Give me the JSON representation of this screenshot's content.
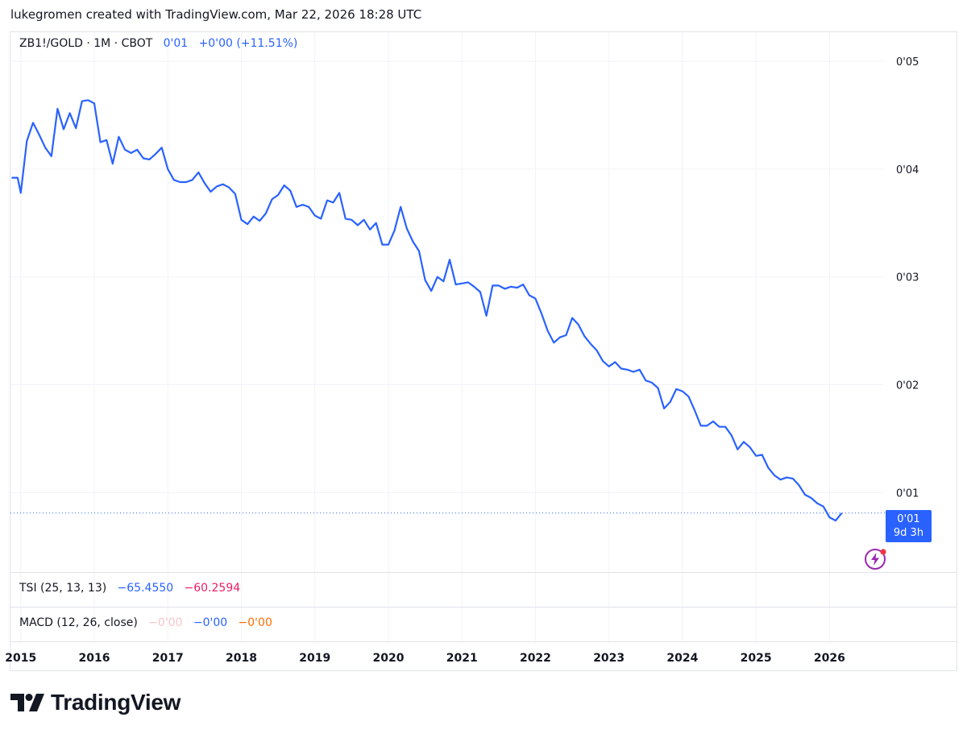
{
  "header": {
    "text": "lukegromen created with TradingView.com, Mar 22, 2026 18:28 UTC"
  },
  "legend": {
    "symbol": "ZB1!/GOLD · 1M · CBOT",
    "last": "0'01",
    "change": "+0'00 (+11.51%)"
  },
  "tsi": {
    "label": "TSI (25, 13, 13)",
    "v1": "−65.4550",
    "v2": "−60.2594"
  },
  "macd": {
    "label": "MACD (12, 26, close)",
    "v1": "−0'00",
    "v2": "−0'00",
    "v3": "−0'00"
  },
  "price_box": {
    "value": "0'01",
    "countdown": "9d 3h"
  },
  "logo": {
    "text": "TradingView"
  },
  "colors": {
    "line": "#2962ff",
    "grid": "#f0f3fa",
    "text": "#131722",
    "accent": "#2962ff"
  },
  "chart_data": {
    "type": "line",
    "title": "ZB1!/GOLD · 1M · CBOT",
    "y_tick_labels": [
      "0'05",
      "0'04",
      "0'03",
      "0'02",
      "0'01"
    ],
    "y_tick_values": [
      0.05,
      0.04,
      0.03,
      0.02,
      0.01
    ],
    "ylim": [
      0.0027,
      0.0527
    ],
    "x_tick_labels": [
      "2015",
      "2016",
      "2017",
      "2018",
      "2019",
      "2020",
      "2021",
      "2022",
      "2023",
      "2024",
      "2025",
      "2026"
    ],
    "x_tick_values": [
      2015,
      2016,
      2017,
      2018,
      2019,
      2020,
      2021,
      2022,
      2023,
      2024,
      2025,
      2026
    ],
    "xlim": [
      2014.86,
      2026.73
    ],
    "current_value": 0.0081,
    "series": [
      {
        "name": "ZB1!/GOLD",
        "x": [
          2014.875,
          2014.958,
          2015.0,
          2015.083,
          2015.167,
          2015.25,
          2015.333,
          2015.417,
          2015.5,
          2015.583,
          2015.667,
          2015.75,
          2015.833,
          2015.917,
          2016.0,
          2016.083,
          2016.167,
          2016.25,
          2016.333,
          2016.417,
          2016.5,
          2016.583,
          2016.667,
          2016.75,
          2016.833,
          2016.917,
          2017.0,
          2017.083,
          2017.167,
          2017.25,
          2017.333,
          2017.417,
          2017.5,
          2017.583,
          2017.667,
          2017.75,
          2017.833,
          2017.917,
          2018.0,
          2018.083,
          2018.167,
          2018.25,
          2018.333,
          2018.417,
          2018.5,
          2018.583,
          2018.667,
          2018.75,
          2018.833,
          2018.917,
          2019.0,
          2019.083,
          2019.167,
          2019.25,
          2019.333,
          2019.417,
          2019.5,
          2019.583,
          2019.667,
          2019.75,
          2019.833,
          2019.917,
          2020.0,
          2020.083,
          2020.167,
          2020.25,
          2020.333,
          2020.417,
          2020.5,
          2020.583,
          2020.667,
          2020.75,
          2020.833,
          2020.917,
          2021.0,
          2021.083,
          2021.167,
          2021.25,
          2021.333,
          2021.417,
          2021.5,
          2021.583,
          2021.667,
          2021.75,
          2021.833,
          2021.917,
          2022.0,
          2022.083,
          2022.167,
          2022.25,
          2022.333,
          2022.417,
          2022.5,
          2022.583,
          2022.667,
          2022.75,
          2022.833,
          2022.917,
          2023.0,
          2023.083,
          2023.167,
          2023.25,
          2023.333,
          2023.417,
          2023.5,
          2023.583,
          2023.667,
          2023.75,
          2023.833,
          2023.917,
          2024.0,
          2024.083,
          2024.167,
          2024.25,
          2024.333,
          2024.417,
          2024.5,
          2024.583,
          2024.667,
          2024.75,
          2024.833,
          2024.917,
          2025.0,
          2025.083,
          2025.167,
          2025.25,
          2025.333,
          2025.417,
          2025.5,
          2025.583,
          2025.667,
          2025.75,
          2025.833,
          2025.917,
          2026.0,
          2026.083,
          2026.167
        ],
        "y": [
          0.0392,
          0.0392,
          0.0378,
          0.0426,
          0.0443,
          0.0432,
          0.042,
          0.0412,
          0.0456,
          0.0437,
          0.0452,
          0.0438,
          0.0463,
          0.0464,
          0.0461,
          0.0425,
          0.0427,
          0.0405,
          0.043,
          0.0418,
          0.0415,
          0.0418,
          0.041,
          0.0409,
          0.0414,
          0.042,
          0.04,
          0.039,
          0.0388,
          0.0388,
          0.039,
          0.0397,
          0.0387,
          0.0379,
          0.0384,
          0.0386,
          0.0383,
          0.0377,
          0.0353,
          0.0349,
          0.0356,
          0.0352,
          0.0359,
          0.0372,
          0.0376,
          0.0385,
          0.038,
          0.0365,
          0.0367,
          0.0365,
          0.0357,
          0.0354,
          0.0371,
          0.0369,
          0.0378,
          0.0354,
          0.0353,
          0.0348,
          0.0353,
          0.0344,
          0.035,
          0.033,
          0.033,
          0.0343,
          0.0365,
          0.0345,
          0.0333,
          0.0324,
          0.0297,
          0.0287,
          0.03,
          0.0296,
          0.0316,
          0.0293,
          0.0294,
          0.0295,
          0.0291,
          0.0286,
          0.0264,
          0.0292,
          0.0292,
          0.0289,
          0.0291,
          0.029,
          0.0293,
          0.0283,
          0.028,
          0.0266,
          0.025,
          0.0239,
          0.0244,
          0.0246,
          0.0262,
          0.0256,
          0.0245,
          0.0238,
          0.0232,
          0.0222,
          0.0217,
          0.0221,
          0.0215,
          0.0214,
          0.0212,
          0.0214,
          0.0204,
          0.0202,
          0.0197,
          0.0178,
          0.0184,
          0.0196,
          0.0194,
          0.0189,
          0.0176,
          0.0162,
          0.0162,
          0.0166,
          0.0161,
          0.0161,
          0.0153,
          0.014,
          0.0147,
          0.0142,
          0.0134,
          0.0135,
          0.0123,
          0.0116,
          0.0112,
          0.0114,
          0.0113,
          0.0107,
          0.0098,
          0.0095,
          0.009,
          0.0087,
          0.0077,
          0.0074,
          0.0081
        ]
      }
    ]
  }
}
